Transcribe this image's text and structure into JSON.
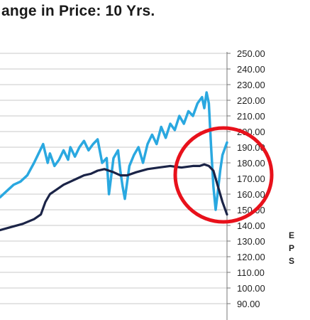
{
  "chart_data": {
    "type": "line",
    "title": "ange in Price: 10 Yrs.",
    "ylabel": "EPS",
    "ylabel_letters": [
      "E",
      "P",
      "S"
    ],
    "ylim": [
      88,
      252
    ],
    "y_ticks": [
      "90.00",
      "100.00",
      "110.00",
      "120.00",
      "130.00",
      "140.00",
      "150.00",
      "160.00",
      "170.00",
      "180.00",
      "190.00",
      "200.00",
      "210.00",
      "220.00",
      "230.00",
      "240.00",
      "250.00"
    ],
    "grid": true,
    "x_index_range": [
      0,
      100
    ],
    "series": [
      {
        "color": "#2aa8e0",
        "x": [
          0,
          3,
          6,
          9,
          12,
          15,
          17,
          19,
          21,
          22,
          24,
          26,
          28,
          30,
          31,
          33,
          35,
          37,
          39,
          41,
          43,
          45,
          47,
          48,
          50,
          52,
          53,
          54,
          55,
          57,
          59,
          61,
          63,
          65,
          67,
          69,
          71,
          73,
          75,
          77,
          79,
          81,
          83,
          85,
          87,
          89,
          90,
          91,
          92,
          93,
          94,
          95,
          96,
          97,
          98,
          100
        ],
        "values": [
          158,
          162,
          166,
          168,
          172,
          180,
          186,
          192,
          180,
          186,
          178,
          182,
          188,
          182,
          190,
          184,
          190,
          194,
          188,
          192,
          195,
          180,
          183,
          160,
          183,
          188,
          175,
          165,
          157,
          178,
          185,
          190,
          180,
          192,
          198,
          192,
          203,
          196,
          205,
          201,
          210,
          205,
          213,
          210,
          218,
          222,
          215,
          225,
          218,
          190,
          165,
          150,
          162,
          175,
          185,
          193
        ]
      },
      {
        "color": "#1b2447",
        "x": [
          0,
          5,
          10,
          15,
          18,
          20,
          22,
          25,
          28,
          31,
          34,
          37,
          40,
          43,
          46,
          48,
          50,
          53,
          56,
          60,
          65,
          70,
          75,
          80,
          85,
          88,
          90,
          92,
          94,
          96,
          98,
          100
        ],
        "values": [
          137,
          139,
          141,
          144,
          147,
          155,
          160,
          163,
          166,
          168,
          170,
          172,
          173,
          175,
          176,
          175,
          174,
          172,
          172,
          174,
          176,
          177,
          178,
          177,
          178,
          178,
          179,
          178,
          175,
          165,
          155,
          147
        ]
      }
    ],
    "annotations": [
      {
        "type": "circle",
        "color": "#e8111b",
        "description": "highlight of recent drop"
      }
    ]
  }
}
